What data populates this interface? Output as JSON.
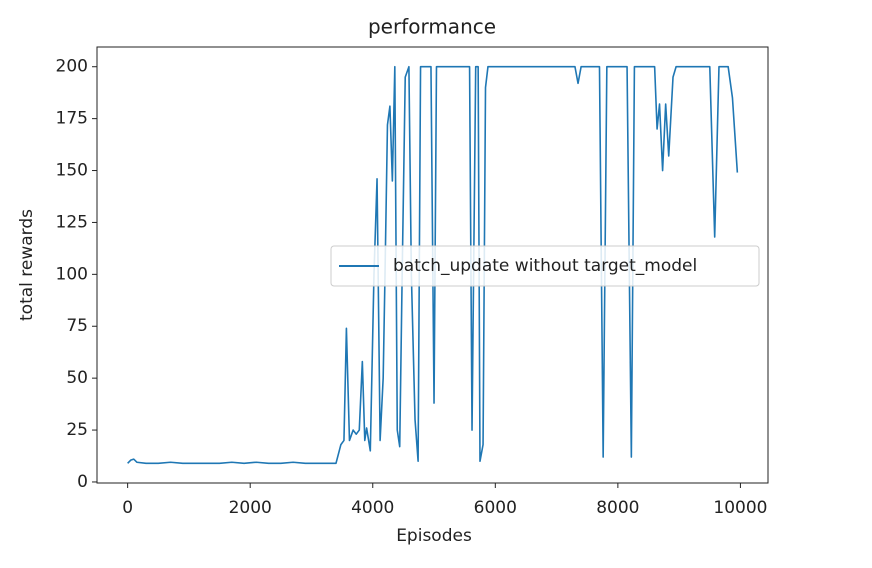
{
  "chart_data": {
    "type": "line",
    "title": "performance",
    "x_label": "Episodes",
    "y_label": "total rewards",
    "x": [
      0,
      50,
      100,
      150,
      300,
      500,
      700,
      900,
      1100,
      1300,
      1500,
      1700,
      1900,
      2100,
      2300,
      2500,
      2700,
      2900,
      3100,
      3300,
      3400,
      3480,
      3530,
      3570,
      3620,
      3680,
      3730,
      3780,
      3830,
      3870,
      3900,
      3960,
      4020,
      4070,
      4120,
      4170,
      4200,
      4240,
      4280,
      4320,
      4360,
      4400,
      4440,
      4480,
      4530,
      4590,
      4630,
      4690,
      4740,
      4780,
      4830,
      4900,
      4950,
      5000,
      5040,
      5100,
      5300,
      5580,
      5620,
      5680,
      5720,
      5750,
      5800,
      5840,
      5880,
      6000,
      7300,
      7350,
      7400,
      7700,
      7760,
      7820,
      8150,
      8220,
      8270,
      8600,
      8640,
      8680,
      8730,
      8780,
      8830,
      8900,
      8950,
      9500,
      9580,
      9650,
      9800,
      9870,
      9950
    ],
    "series": [
      {
        "name": "batch_update without target_model",
        "color": "#1f77b4",
        "values": [
          9,
          10.5,
          11,
          9.5,
          9,
          9,
          9.5,
          9,
          9,
          9,
          9,
          9.5,
          9,
          9.5,
          9,
          9,
          9.5,
          9,
          9,
          9,
          9,
          18,
          20,
          74,
          20,
          25,
          23,
          25,
          58,
          20,
          26,
          15,
          100,
          146,
          20,
          50,
          100,
          172,
          181,
          145,
          200,
          25,
          17,
          100,
          195,
          200,
          100,
          30,
          10,
          200,
          200,
          200,
          200,
          38,
          200,
          200,
          200,
          200,
          25,
          200,
          200,
          10,
          18,
          190,
          200,
          200,
          200,
          192,
          200,
          200,
          12,
          200,
          200,
          12,
          200,
          200,
          170,
          182,
          150,
          182,
          157,
          195,
          200,
          200,
          118,
          200,
          200,
          185,
          149
        ]
      }
    ],
    "xlim": [
      -500,
      10450
    ],
    "ylim": [
      -0.5,
      209.5
    ],
    "xticks": [
      0,
      2000,
      4000,
      6000,
      8000,
      10000
    ],
    "yticks": [
      0,
      25,
      50,
      75,
      100,
      125,
      150,
      175,
      200
    ],
    "legend": "center right"
  }
}
